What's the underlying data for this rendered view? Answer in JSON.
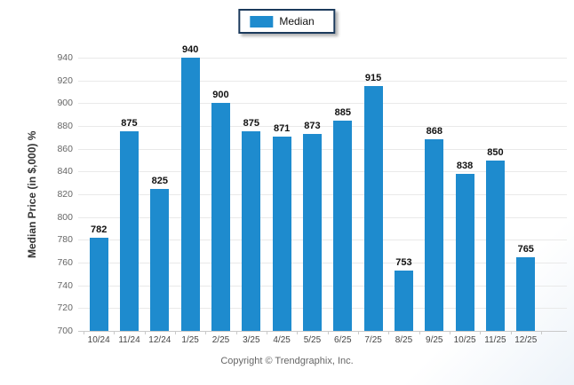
{
  "legend": {
    "label": "Median"
  },
  "y_axis": {
    "title": "Median Price (in $,000) %"
  },
  "footer": {
    "copyright": "Copyright © Trendgraphix, Inc."
  },
  "colors": {
    "bar": "#1e8bce",
    "legend_border": "#1b3a5c",
    "gridline": "#e9e9e9",
    "baseline": "#c9c9c9"
  },
  "chart_data": {
    "type": "bar",
    "categories": [
      "10/24",
      "11/24",
      "12/24",
      "1/25",
      "2/25",
      "3/25",
      "4/25",
      "5/25",
      "6/25",
      "7/25",
      "8/25",
      "9/25",
      "10/25",
      "11/25",
      "12/25"
    ],
    "series": [
      {
        "name": "Median",
        "values": [
          782,
          875,
          825,
          940,
          900,
          875,
          871,
          873,
          885,
          915,
          753,
          868,
          838,
          850,
          765
        ]
      }
    ],
    "title": "",
    "xlabel": "",
    "ylabel": "Median Price (in $,000) %",
    "ylim": [
      700,
      940
    ],
    "ytick_step": 20,
    "grid": true,
    "legend_position": "top-center",
    "data_labels": true
  }
}
